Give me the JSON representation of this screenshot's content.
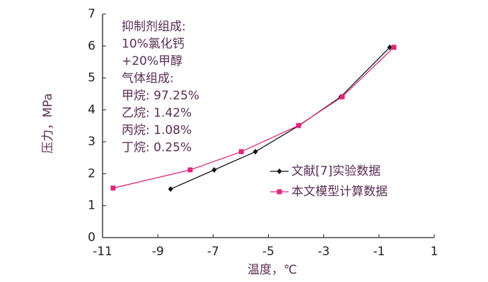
{
  "chart_data": {
    "type": "line",
    "xlabel": "温度，℃",
    "ylabel": "压力，MPa",
    "annotation": [
      "抑制剂组成:",
      "10%氯化钙",
      "+20%甲醇",
      "气体组成:",
      "甲烷: 97.25%",
      "乙烷: 1.42%",
      "丙烷: 1.08%",
      "丁烷: 0.25%"
    ],
    "xlim": [
      -11,
      1
    ],
    "xticks": [
      -11,
      -9,
      -7,
      -5,
      -3,
      -1,
      1
    ],
    "ylim": [
      0,
      7
    ],
    "yticks": [
      0,
      1,
      2,
      3,
      4,
      5,
      6,
      7
    ],
    "legend": "lower right",
    "series": [
      {
        "name": "文献[7]实验数据",
        "color": "#111111",
        "marker": "diamond",
        "x": [
          -8.54,
          -6.96,
          -5.47,
          -3.89,
          -2.38,
          -0.61
        ],
        "values": [
          1.52,
          2.12,
          2.69,
          3.51,
          4.41,
          5.96
        ]
      },
      {
        "name": "本文模型计算数据",
        "color": "#e0257c",
        "marker": "square",
        "x": [
          -10.62,
          -7.83,
          -5.98,
          -3.91,
          -2.33,
          -0.46
        ],
        "values": [
          1.55,
          2.12,
          2.69,
          3.51,
          4.41,
          5.96
        ]
      }
    ]
  }
}
